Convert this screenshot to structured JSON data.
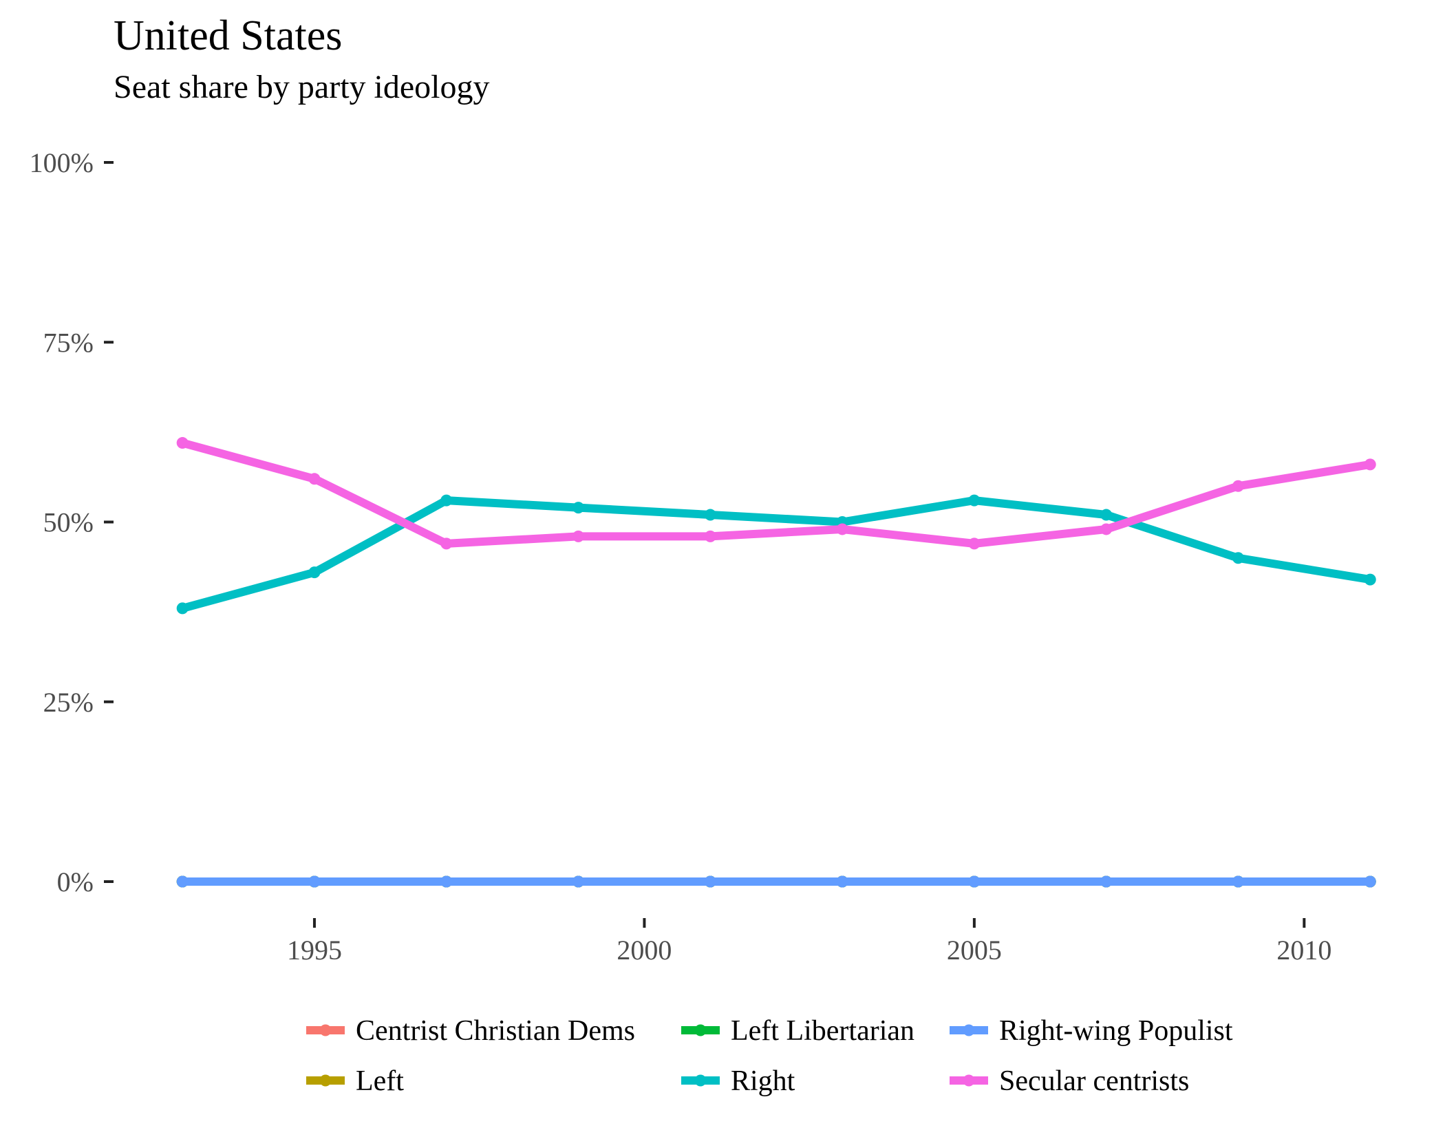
{
  "chart_data": {
    "type": "line",
    "title": "United States",
    "subtitle": "Seat share by party ideology",
    "xlabel": "",
    "ylabel": "",
    "x": [
      1993,
      1995,
      1997,
      1999,
      2001,
      2003,
      2005,
      2007,
      2009,
      2011
    ],
    "xlim": [
      1992.8,
      2011.3
    ],
    "ylim": [
      0,
      100
    ],
    "x_ticks": [
      1995,
      2000,
      2005,
      2010
    ],
    "x_tick_labels": [
      "1995",
      "2000",
      "2005",
      "2010"
    ],
    "y_ticks": [
      0,
      25,
      50,
      75,
      100
    ],
    "y_tick_labels": [
      "0%",
      "25%",
      "50%",
      "75%",
      "100%"
    ],
    "grid": false,
    "legend_position": "bottom",
    "series": [
      {
        "name": "Centrist Christian Dems",
        "color": "#F8766D",
        "values": [
          0,
          0,
          0,
          0,
          0,
          0,
          0,
          0,
          0,
          0
        ]
      },
      {
        "name": "Left",
        "color": "#B79F00",
        "values": [
          0,
          0,
          0,
          0,
          0,
          0,
          0,
          0,
          0,
          0
        ]
      },
      {
        "name": "Left Libertarian",
        "color": "#00BA38",
        "values": [
          0,
          0,
          0,
          0,
          0,
          0,
          0,
          0,
          0,
          0
        ]
      },
      {
        "name": "Right",
        "color": "#00BFC4",
        "values": [
          38,
          43,
          53,
          52,
          51,
          50,
          53,
          51,
          45,
          42
        ]
      },
      {
        "name": "Right-wing Populist",
        "color": "#619CFF",
        "values": [
          0,
          0,
          0,
          0,
          0,
          0,
          0,
          0,
          0,
          0
        ]
      },
      {
        "name": "Secular centrists",
        "color": "#F564E3",
        "values": [
          61,
          56,
          47,
          48,
          48,
          49,
          47,
          49,
          55,
          58
        ]
      }
    ],
    "legend": [
      {
        "name": "Centrist Christian Dems",
        "color": "#F8766D"
      },
      {
        "name": "Left Libertarian",
        "color": "#00BA38"
      },
      {
        "name": "Right-wing Populist",
        "color": "#619CFF"
      },
      {
        "name": "Left",
        "color": "#B79F00"
      },
      {
        "name": "Right",
        "color": "#00BFC4"
      },
      {
        "name": "Secular centrists",
        "color": "#F564E3"
      }
    ]
  }
}
